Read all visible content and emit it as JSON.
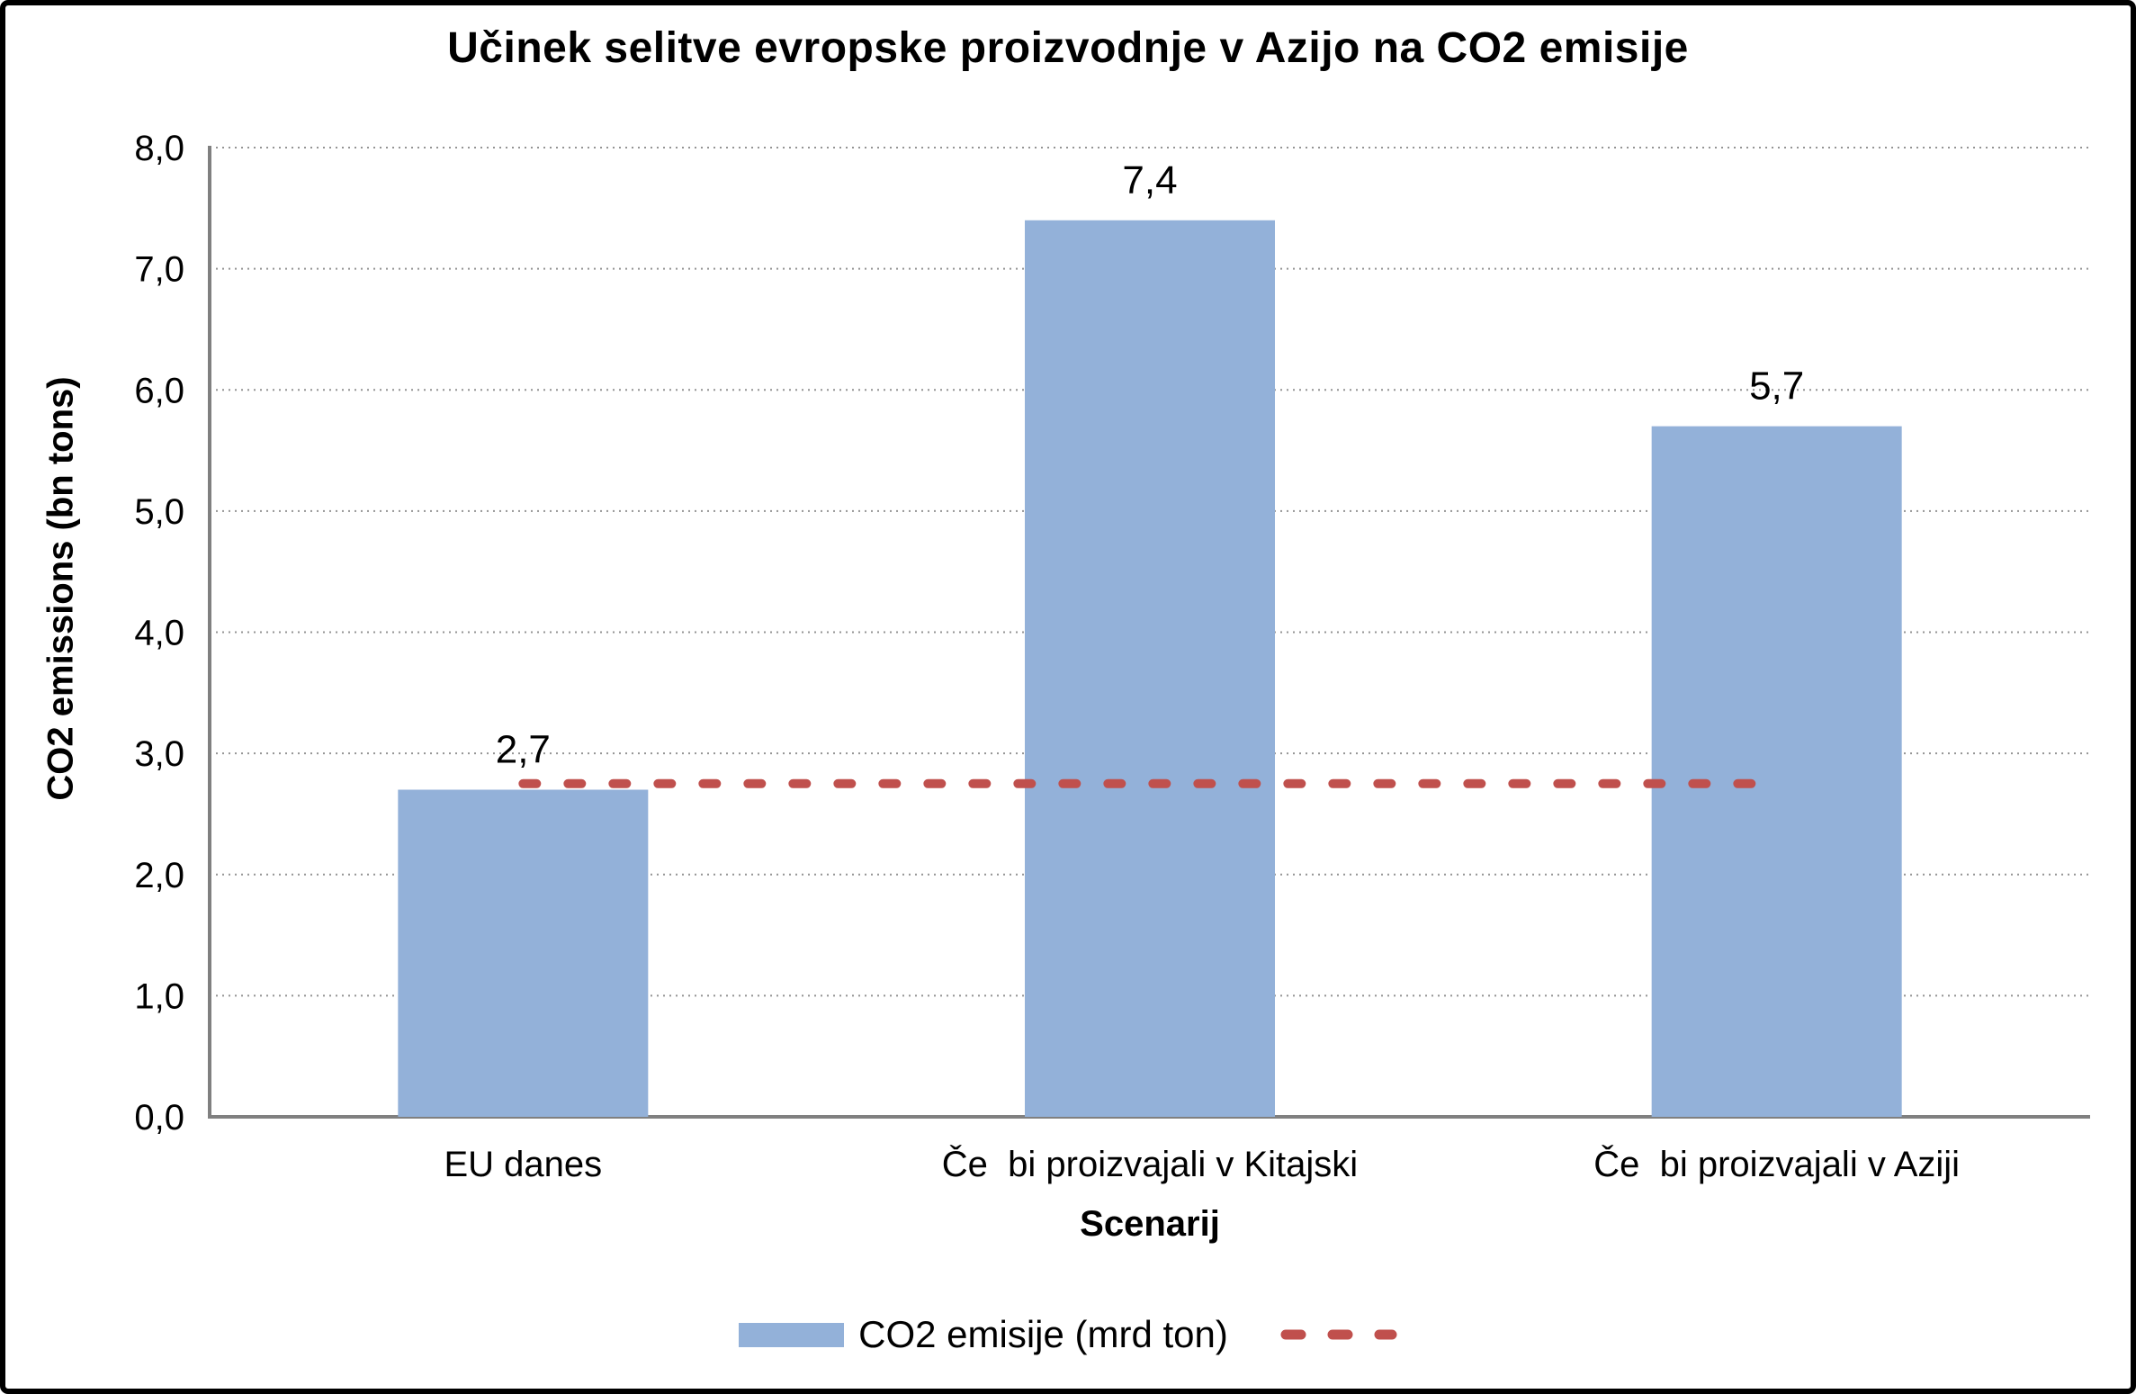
{
  "chart_data": {
    "type": "bar",
    "title": "Učinek selitve evropske proizvodnje v Azijo na CO2 emisije",
    "xlabel": "Scenarij",
    "ylabel": "CO2 emissions (bn tons)",
    "categories": [
      "EU danes",
      "Če  bi proizvajali v Kitajski",
      "Če  bi proizvajali v Aziji"
    ],
    "series": [
      {
        "name": "CO2 emisije (mrd ton)",
        "type": "bar",
        "values": [
          2.7,
          7.4,
          5.7
        ],
        "value_labels": [
          "2,7",
          "7,4",
          "5,7"
        ],
        "color": "#93B1D9"
      }
    ],
    "reference_line": {
      "value": 2.75,
      "color": "#C0504D",
      "style": "dashed",
      "legend_label": "",
      "span_category_indexes": [
        0,
        2
      ]
    },
    "ylim": [
      0,
      8
    ],
    "yticks": [
      {
        "value": 0,
        "label": "0,0"
      },
      {
        "value": 1,
        "label": "1,0"
      },
      {
        "value": 2,
        "label": "2,0"
      },
      {
        "value": 3,
        "label": "3,0"
      },
      {
        "value": 4,
        "label": "4,0"
      },
      {
        "value": 5,
        "label": "5,0"
      },
      {
        "value": 6,
        "label": "6,0"
      },
      {
        "value": 7,
        "label": "7,0"
      },
      {
        "value": 8,
        "label": "8,0"
      },
      {
        "value": 0,
        "label": "0,0"
      }
    ],
    "grid": "horizontal dotted",
    "grid_color": "#949494",
    "axis_color": "#808080",
    "legend_position": "bottom center"
  }
}
